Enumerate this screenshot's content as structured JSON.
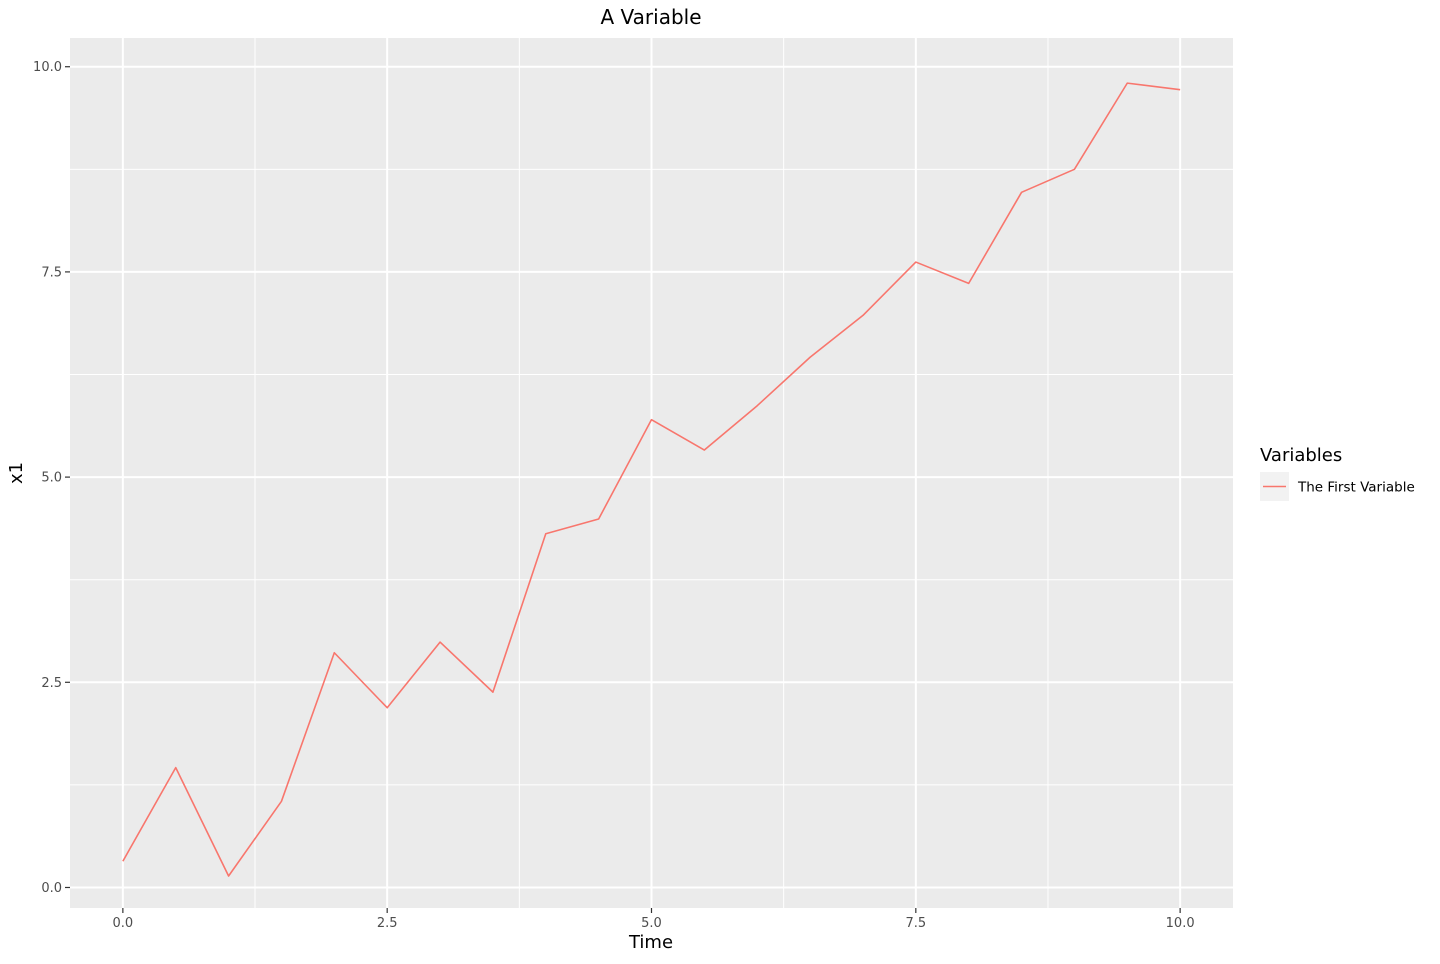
{
  "chart_data": {
    "type": "line",
    "title": "A Variable",
    "xlabel": "Time",
    "ylabel": "x1",
    "xlim": [
      -0.5,
      10.5
    ],
    "ylim": [
      -0.25,
      10.35
    ],
    "x_ticks": [
      0,
      2.5,
      5,
      7.5,
      10
    ],
    "x_tick_labels": [
      "0.0",
      "2.5",
      "5.0",
      "7.5",
      "10.0"
    ],
    "y_ticks": [
      0,
      2.5,
      5,
      7.5,
      10
    ],
    "y_tick_labels": [
      "0.0",
      "2.5",
      "5.0",
      "7.5",
      "10.0"
    ],
    "x_minor_ticks": [
      1.25,
      3.75,
      6.25,
      8.75
    ],
    "y_minor_ticks": [
      1.25,
      3.75,
      6.25,
      8.75
    ],
    "grid": true,
    "panel_background": "#EBEBEB",
    "grid_color": "#FFFFFF",
    "legend": {
      "title": "Variables",
      "position": "right",
      "entries": [
        {
          "label": "The First Variable",
          "color": "#F8766D"
        }
      ]
    },
    "series": [
      {
        "name": "The First Variable",
        "color": "#F8766D",
        "x": [
          0,
          0.5,
          1,
          1.5,
          2,
          2.5,
          3,
          3.5,
          4,
          4.5,
          5,
          5.5,
          6,
          6.5,
          7,
          7.5,
          8,
          8.5,
          9,
          9.5,
          10
        ],
        "y": [
          0.32,
          1.46,
          0.14,
          1.05,
          2.86,
          2.19,
          2.99,
          2.38,
          4.31,
          4.49,
          5.7,
          5.33,
          5.87,
          6.46,
          6.97,
          7.62,
          7.36,
          8.47,
          8.75,
          9.8,
          9.72
        ]
      }
    ]
  }
}
